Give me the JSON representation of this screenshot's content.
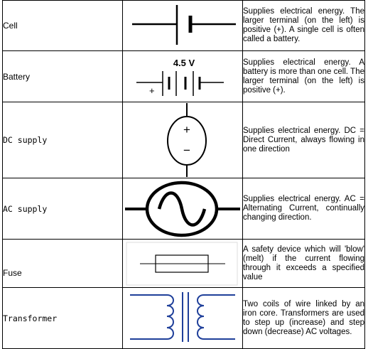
{
  "rows": [
    {
      "name": "Cell",
      "icon": "cell-symbol-icon",
      "description": "Supplies electrical energy. The larger terminal (on the left) is positive (+). A single cell is often called a battery."
    },
    {
      "name": "Battery",
      "icon": "battery-symbol-icon",
      "symbol_label": "4.5 V",
      "plus_sign": "+",
      "description": "Supplies electrical energy. A battery is more than one cell. The larger terminal (on the left) is positive (+)."
    },
    {
      "name": "DC supply",
      "icon": "dc-supply-symbol-icon",
      "plus_sign": "+",
      "minus_sign": "−",
      "description": "Supplies electrical energy. DC = Direct Current, always flowing in one direction"
    },
    {
      "name": "AC supply",
      "icon": "ac-supply-symbol-icon",
      "description": "Supplies electrical energy. AC = Alternating Current, continually changing direction."
    },
    {
      "name": "Fuse",
      "icon": "fuse-symbol-icon",
      "description": "A safety device which will 'blow' (melt) if the current flowing through it exceeds a specified value"
    },
    {
      "name": "Transformer",
      "icon": "transformer-symbol-icon",
      "description": "Two coils of wire linked by an iron core. Transformers are used to step up (increase) and step down (decrease) AC voltages."
    }
  ]
}
